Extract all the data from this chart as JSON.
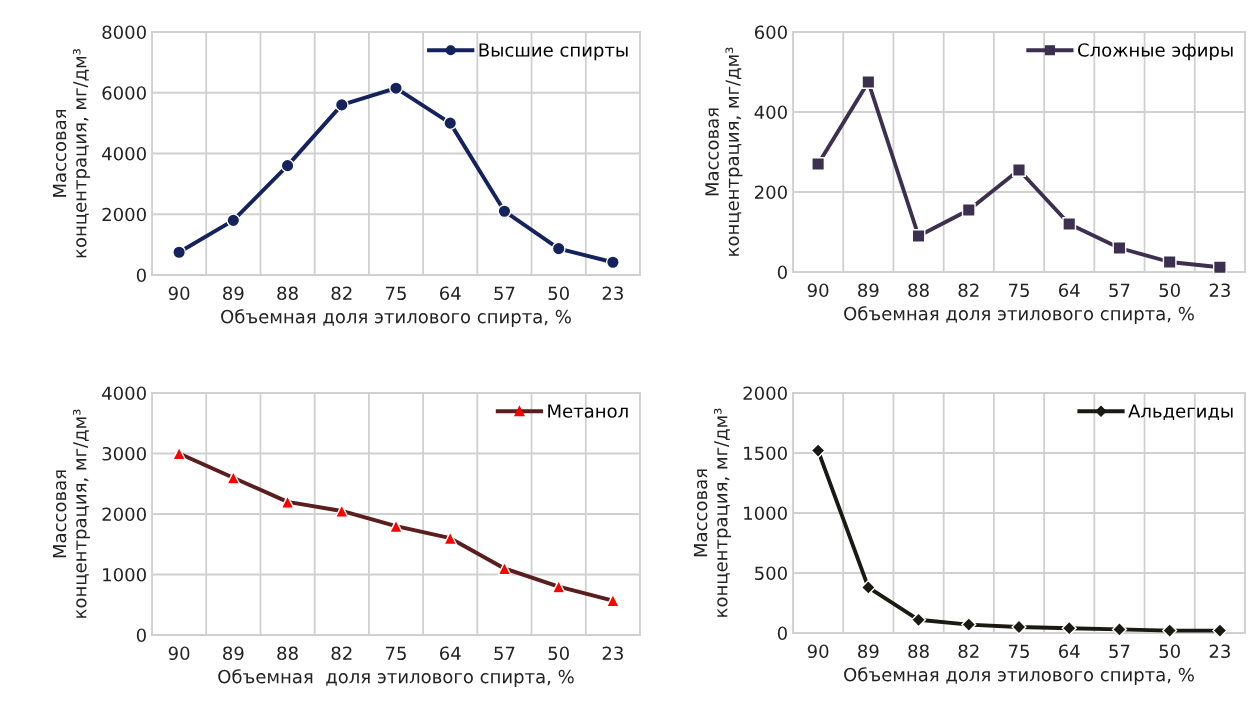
{
  "chart_data": [
    {
      "type": "line",
      "categories": [
        "90",
        "89",
        "88",
        "82",
        "75",
        "64",
        "57",
        "50",
        "23"
      ],
      "xlabel": "Объемная доля этилового спирта, %",
      "ylabel": "Массовая\nконцентрация, мг/дм³",
      "ylim": [
        0,
        8000
      ],
      "yticks": [
        0,
        2000,
        4000,
        6000,
        8000
      ],
      "grid": true,
      "legend": "top right",
      "marker": "circle",
      "line_style": "solid",
      "series": [
        {
          "name": "Высшие спирты",
          "color": "#14235e",
          "values": [
            750,
            1800,
            3600,
            5600,
            6150,
            5000,
            2100,
            870,
            420
          ]
        }
      ]
    },
    {
      "type": "line",
      "categories": [
        "90",
        "89",
        "88",
        "82",
        "75",
        "64",
        "57",
        "50",
        "23"
      ],
      "xlabel": "Объемная доля этилового спирта, %",
      "ylabel": "Массовая\nконцентрация, мг/дм³",
      "ylim": [
        0,
        600
      ],
      "yticks": [
        0,
        200,
        400,
        600
      ],
      "grid": true,
      "legend": "top right",
      "marker": "square",
      "line_style": "solid",
      "series": [
        {
          "name": "Сложные эфиры",
          "color": "#3d2f4f",
          "values": [
            270,
            475,
            90,
            155,
            255,
            120,
            60,
            25,
            12
          ]
        }
      ]
    },
    {
      "type": "line",
      "categories": [
        "90",
        "89",
        "88",
        "82",
        "75",
        "64",
        "57",
        "50",
        "23"
      ],
      "xlabel": "Объемная  доля этилового спирта, %",
      "ylabel": "Массовая\nконцентрация, мг/дм³",
      "ylim": [
        0,
        4000
      ],
      "yticks": [
        0,
        1000,
        2000,
        3000,
        4000
      ],
      "grid": true,
      "legend": "top right",
      "marker": "triangle",
      "line_style": "solid",
      "series": [
        {
          "name": "Метанол",
          "color": "#5a1e1e",
          "colors": [
            "#ff0000",
            "#ff0000",
            "#ff0000",
            "#ff0000",
            "#ff0000",
            "#ff0000",
            "#ff0000",
            "#ff0000",
            "#ff0000"
          ],
          "values": [
            3000,
            2600,
            2200,
            2050,
            1800,
            1600,
            1100,
            800,
            570
          ]
        }
      ]
    },
    {
      "type": "line",
      "categories": [
        "90",
        "89",
        "88",
        "82",
        "75",
        "64",
        "57",
        "50",
        "23"
      ],
      "xlabel": "Объемная доля этилового спирта, %",
      "ylabel": "Массовая\nконцентрация, мг/дм³",
      "ylim": [
        0,
        2000
      ],
      "yticks": [
        0,
        500,
        1000,
        1500,
        2000
      ],
      "grid": true,
      "legend": "top right",
      "marker": "diamond",
      "line_style": "solid",
      "series": [
        {
          "name": "Альдегиды",
          "color": "#1a1a12",
          "values": [
            1520,
            380,
            110,
            70,
            50,
            40,
            30,
            20,
            20
          ]
        }
      ]
    }
  ]
}
